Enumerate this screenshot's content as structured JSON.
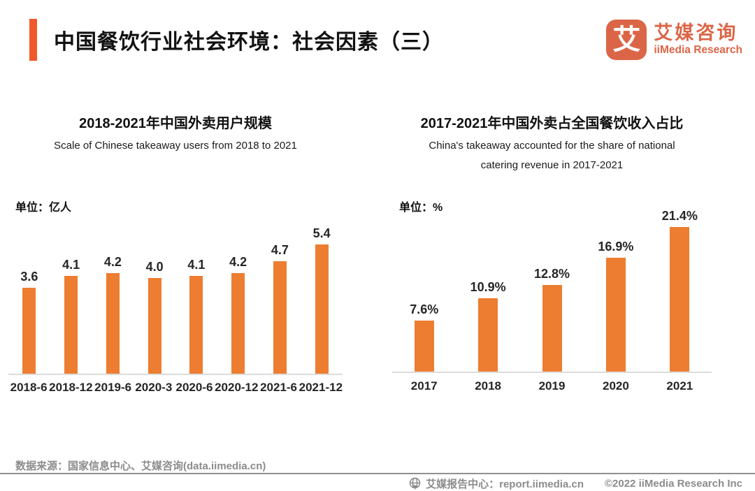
{
  "header": {
    "title": "中国餐饮行业社会环境：社会因素（三）",
    "accent_color": "#F1592B",
    "logo": {
      "mark_text": "艾",
      "mark_bg": "#DB6647",
      "name_cn": "艾媒咨询",
      "name_en": "iiMedia Research"
    }
  },
  "chart_data": [
    {
      "type": "bar",
      "title": "2018-2021年中国外卖用户规模",
      "subtitle": "Scale of Chinese takeaway users from 2018 to 2021",
      "unit_label": "单位：亿人",
      "categories": [
        "2018-6",
        "2018-12",
        "2019-6",
        "2020-3",
        "2020-6",
        "2020-12",
        "2021-6",
        "2021-12"
      ],
      "values": [
        3.6,
        4.1,
        4.2,
        4.0,
        4.1,
        4.2,
        4.7,
        5.4
      ],
      "value_labels": [
        "3.6",
        "4.1",
        "4.2",
        "4.0",
        "4.1",
        "4.2",
        "4.7",
        "5.4"
      ],
      "xlabel": "",
      "ylabel": "亿人",
      "ylim": [
        0,
        5.4
      ],
      "bar_color": "#ED7D31",
      "grid": false,
      "legend": false
    },
    {
      "type": "bar",
      "title": "2017-2021年中国外卖占全国餐饮收入占比",
      "subtitle": "China's takeaway accounted for the share of national catering revenue in 2017-2021",
      "unit_label": "单位：%",
      "categories": [
        "2017",
        "2018",
        "2019",
        "2020",
        "2021"
      ],
      "values": [
        7.6,
        10.9,
        12.8,
        16.9,
        21.4
      ],
      "value_labels": [
        "7.6%",
        "10.9%",
        "12.8%",
        "16.9%",
        "21.4%"
      ],
      "xlabel": "",
      "ylabel": "%",
      "ylim": [
        0,
        21.4
      ],
      "bar_color": "#ED7D31",
      "grid": false,
      "legend": false
    }
  ],
  "footer": {
    "source": "数据来源：国家信息中心、艾媒咨询(data.iimedia.cn)",
    "report_center": "艾媒报告中心：report.iimedia.cn",
    "copyright": "©2022  iiMedia Research Inc"
  }
}
